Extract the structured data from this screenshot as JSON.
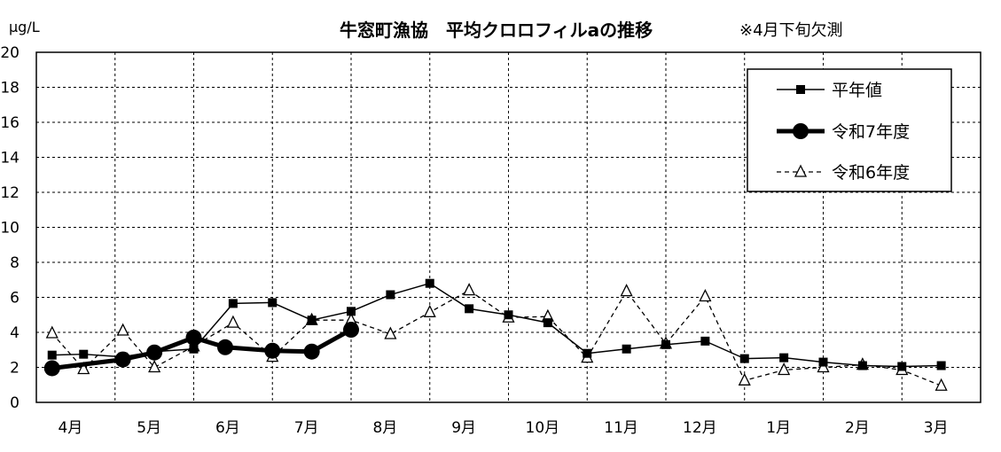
{
  "chart_data": {
    "type": "line",
    "title": "牛窓町漁協　平均クロロフィルaの推移",
    "note": "※4月下旬欠測",
    "ylabel": "μg/L",
    "ylim": [
      0,
      20
    ],
    "ytick_labels": [
      "0",
      "2",
      "4",
      "6",
      "8",
      "10",
      "12",
      "14",
      "16",
      "18",
      "20"
    ],
    "categories": [
      "4月",
      "5月",
      "6月",
      "7月",
      "8月",
      "9月",
      "10月",
      "11月",
      "12月",
      "1月",
      "2月",
      "3月"
    ],
    "grid": true,
    "legend_position": "top-right",
    "series": [
      {
        "name": "平年値",
        "style": "solid-thin",
        "marker": "square",
        "color": "#000000",
        "points": [
          [
            0.2,
            2.7
          ],
          [
            0.6,
            2.75
          ],
          [
            1.1,
            2.6
          ],
          [
            1.5,
            2.9
          ],
          [
            2.0,
            3.05
          ],
          [
            2.5,
            5.65
          ],
          [
            3.0,
            5.7
          ],
          [
            3.5,
            4.7
          ],
          [
            4.0,
            5.2
          ],
          [
            4.5,
            6.15
          ],
          [
            5.0,
            6.8
          ],
          [
            5.5,
            5.35
          ],
          [
            6.0,
            5.0
          ],
          [
            6.5,
            4.55
          ],
          [
            7.0,
            2.8
          ],
          [
            7.5,
            3.05
          ],
          [
            8.0,
            3.3
          ],
          [
            8.5,
            3.5
          ],
          [
            9.0,
            2.5
          ],
          [
            9.5,
            2.55
          ],
          [
            10.0,
            2.3
          ],
          [
            10.5,
            2.1
          ],
          [
            11.0,
            2.05
          ],
          [
            11.5,
            2.1
          ]
        ]
      },
      {
        "name": "令和7年度",
        "style": "solid-thick",
        "marker": "circle",
        "color": "#000000",
        "points": [
          [
            0.2,
            1.95
          ],
          [
            1.1,
            2.45
          ],
          [
            1.5,
            2.85
          ],
          [
            2.0,
            3.7
          ],
          [
            2.4,
            3.15
          ],
          [
            3.0,
            2.95
          ],
          [
            3.5,
            2.9
          ],
          [
            4.0,
            4.15
          ]
        ]
      },
      {
        "name": "令和6年度",
        "style": "dashed",
        "marker": "triangle-open",
        "color": "#000000",
        "points": [
          [
            0.2,
            3.95
          ],
          [
            0.6,
            1.9
          ],
          [
            1.1,
            4.1
          ],
          [
            1.5,
            2.0
          ],
          [
            2.0,
            3.2
          ],
          [
            2.5,
            4.55
          ],
          [
            3.0,
            2.6
          ],
          [
            3.5,
            4.7
          ],
          [
            4.0,
            4.7
          ],
          [
            4.5,
            3.9
          ],
          [
            5.0,
            5.15
          ],
          [
            5.5,
            6.4
          ],
          [
            6.0,
            4.85
          ],
          [
            6.5,
            4.9
          ],
          [
            7.0,
            2.55
          ],
          [
            7.5,
            6.35
          ],
          [
            8.0,
            3.35
          ],
          [
            8.5,
            6.05
          ],
          [
            9.0,
            1.25
          ],
          [
            9.5,
            1.85
          ],
          [
            10.0,
            2.0
          ],
          [
            10.5,
            2.15
          ],
          [
            11.0,
            1.85
          ],
          [
            11.5,
            0.95
          ]
        ]
      }
    ]
  }
}
